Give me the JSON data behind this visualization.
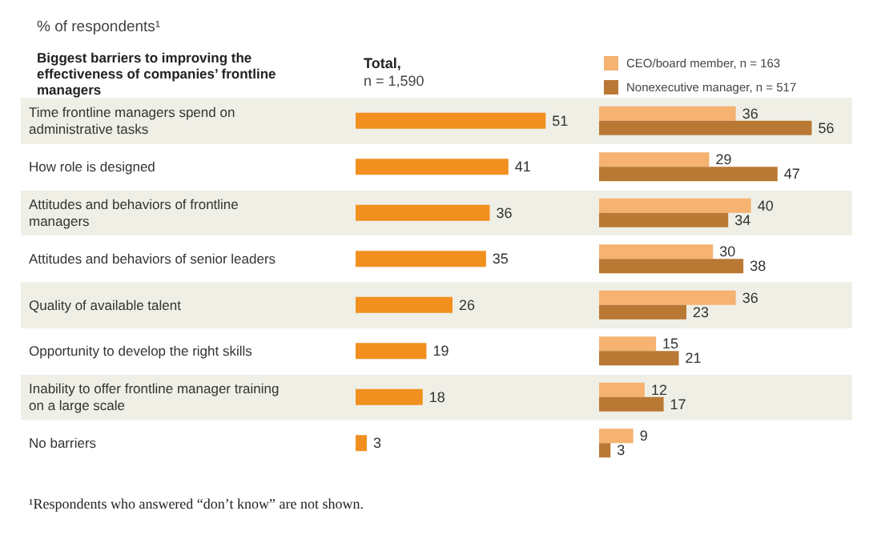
{
  "chart_data": [
    {
      "type": "bar",
      "orientation": "horizontal",
      "ylabel": "Biggest barriers to improving the effectiveness of companies’ frontline managers",
      "title": "Total,",
      "subtitle": "n = 1,590",
      "annotations": [
        "% of respondents¹",
        "¹Respondents who answered “don’t know” are not shown."
      ],
      "categories": [
        "Time frontline managers spend on administrative tasks",
        "How role is designed",
        "Attitudes and behaviors of frontline managers",
        "Attitudes and behaviors of senior leaders",
        "Quality of available talent",
        "Opportunity to develop the right skills",
        "Inability to offer frontline manager training on a large scale",
        "No barriers"
      ],
      "values": [
        51,
        41,
        36,
        35,
        26,
        19,
        18,
        3
      ],
      "color": "#f18f1f",
      "data_labels": true,
      "grid": false,
      "legend": false,
      "tick_labels": "y"
    },
    {
      "type": "bar",
      "orientation": "horizontal",
      "categories": [
        null,
        null,
        null,
        null,
        null,
        null,
        null,
        null
      ],
      "series": [
        {
          "name": "CEO/board member, n = 163",
          "color": "#f5b271",
          "values": [
            36,
            29,
            40,
            30,
            36,
            15,
            12,
            9
          ]
        },
        {
          "name": "Nonexecutive manager, n = 517",
          "color": "#b97834",
          "values": [
            56,
            47,
            34,
            38,
            23,
            21,
            17,
            3
          ]
        }
      ],
      "data_labels": true,
      "grid": false,
      "legend": "top",
      "tick_labels": false
    }
  ]
}
